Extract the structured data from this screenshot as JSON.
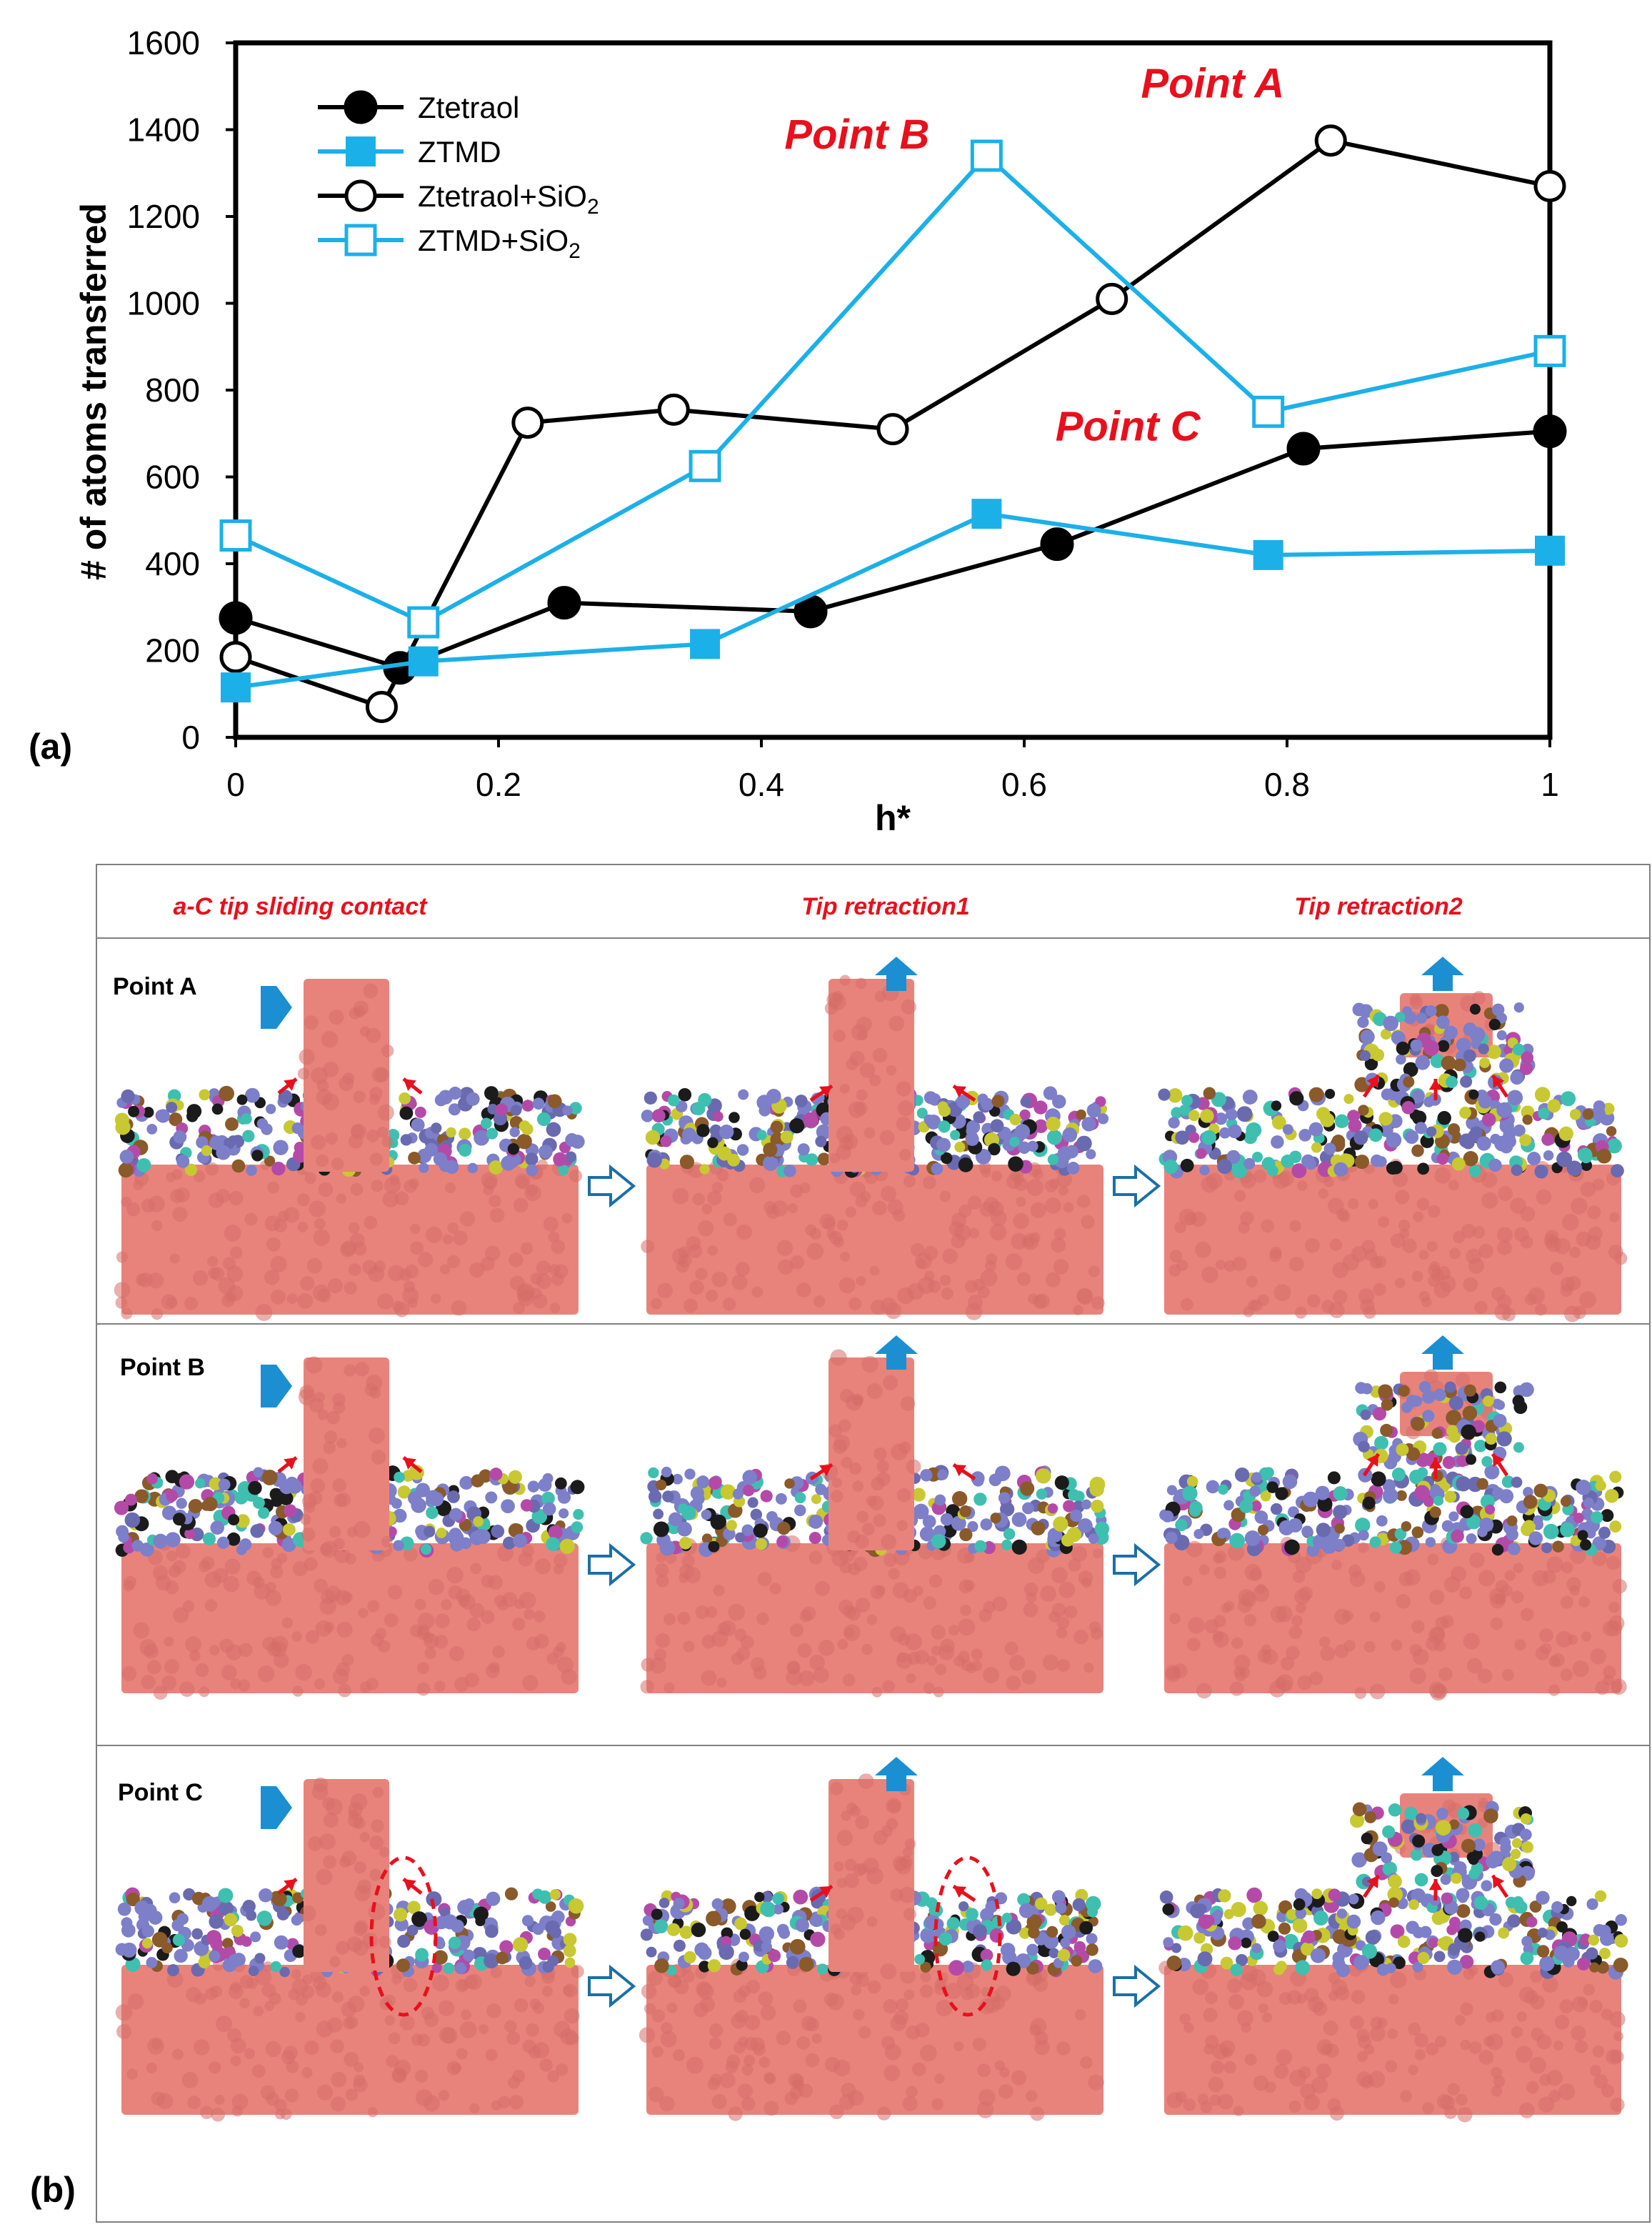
{
  "figure": {
    "panel_a_label": "(a)",
    "panel_b_label": "(b)"
  },
  "colors": {
    "black_series": "#000000",
    "blue_series": "#1cb0e8",
    "annotation_red": "#e8101c",
    "tip_pink": "#e8837c",
    "arrow_blue": "#1b8fd1"
  },
  "chart_data": {
    "type": "line",
    "xlabel": "h*",
    "ylabel": "# of atoms transferred",
    "xlim": [
      0,
      1
    ],
    "ylim": [
      0,
      1600
    ],
    "x_ticks": [
      "0",
      "0.2",
      "0.4",
      "0.6",
      "0.8",
      "1"
    ],
    "y_ticks": [
      "0",
      "200",
      "400",
      "600",
      "800",
      "1000",
      "1200",
      "1400",
      "1600"
    ],
    "legend_position": "top-left",
    "series": [
      {
        "name": "Ztetraol",
        "legend_main": "Ztetraol",
        "legend_sub": "",
        "color": "#000000",
        "marker": "filled-circle",
        "x": [
          0,
          0.125,
          0.25,
          0.4375,
          0.625,
          0.8125,
          1
        ],
        "y": [
          275,
          160,
          310,
          290,
          445,
          665,
          705
        ]
      },
      {
        "name": "ZTMD",
        "legend_main": "ZTMD",
        "legend_sub": "",
        "color": "#1cb0e8",
        "marker": "filled-square",
        "x": [
          0,
          0.1428,
          0.3571,
          0.5714,
          0.7857,
          1
        ],
        "y": [
          115,
          175,
          215,
          515,
          420,
          430
        ]
      },
      {
        "name": "Ztetraol+SiO2",
        "legend_main": "Ztetraol+SiO",
        "legend_sub": "2",
        "color": "#000000",
        "marker": "open-circle",
        "x": [
          0,
          0.1111,
          0.2222,
          0.3333,
          0.5,
          0.6667,
          0.8333,
          1
        ],
        "y": [
          185,
          70,
          725,
          755,
          710,
          1010,
          1375,
          1270
        ]
      },
      {
        "name": "ZTMD+SiO2",
        "legend_main": "ZTMD+SiO",
        "legend_sub": "2",
        "color": "#1cb0e8",
        "marker": "open-square",
        "x": [
          0,
          0.1428,
          0.3571,
          0.5714,
          0.7857,
          1
        ],
        "y": [
          465,
          265,
          625,
          1340,
          750,
          890
        ]
      }
    ],
    "annotations": [
      {
        "text": "Point A",
        "x": 0.8333,
        "y": 1375
      },
      {
        "text": "Point B",
        "x": 0.5714,
        "y": 1340
      },
      {
        "text": "Point C",
        "x": 0.7857,
        "y": 750
      }
    ]
  },
  "panel_b": {
    "columns": [
      "a-C tip sliding contact",
      "Tip retraction1",
      "Tip retraction2"
    ],
    "rows": [
      "Point A",
      "Point B",
      "Point C"
    ]
  }
}
